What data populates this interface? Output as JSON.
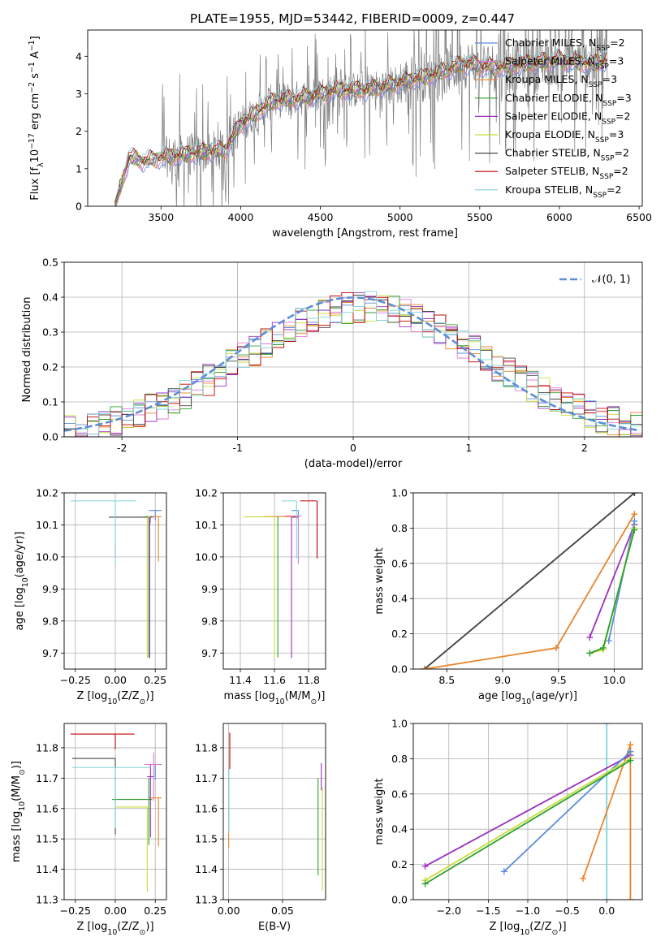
{
  "figure_title": "PLATE=1955, MJD=53442, FIBERID=0009, z=0.447",
  "model_colors": {
    "Chabrier MILES": "#5b8ed6",
    "Salpeter MILES": "#e07ad8",
    "Kroupa MILES": "#e8842a",
    "Chabrier ELODIE": "#2ca02c",
    "Salpeter ELODIE": "#9b30c0",
    "Kroupa ELODIE": "#c8dc3c",
    "Chabrier STELIB": "#444444",
    "Salpeter STELIB": "#c00000",
    "Kroupa STELIB": "#7fd3dc",
    "data": "#7f7f7f"
  },
  "chart_data": [
    {
      "id": "spectrum",
      "type": "line",
      "title": "",
      "xlabel": "wavelength [Angstrom, rest frame]",
      "ylabel_main": "Flux [f",
      "ylabel_sub": "λ",
      "ylabel_mid": "10",
      "ylabel_sup1": "−17",
      "ylabel_rest": " erg cm",
      "ylabel_sup2": "−2",
      "ylabel_rest2": " s",
      "ylabel_sup3": "−1",
      "ylabel_rest3": " A",
      "ylabel_sup4": "−1",
      "ylabel_end": "]",
      "xlim": [
        3040,
        6520
      ],
      "ylim": [
        0,
        4.7
      ],
      "xticks": [
        3500,
        4000,
        4500,
        5000,
        5500,
        6000,
        6500
      ],
      "yticks": [
        0,
        1,
        2,
        3,
        4
      ],
      "grid": false,
      "legend_position": "top-right",
      "legend": [
        {
          "name": "Chabrier MILES",
          "nssp": "2"
        },
        {
          "name": "Salpeter MILES",
          "nssp": "3"
        },
        {
          "name": "Kroupa MILES",
          "nssp": "3"
        },
        {
          "name": "Chabrier ELODIE",
          "nssp": "3"
        },
        {
          "name": "Salpeter ELODIE",
          "nssp": "2"
        },
        {
          "name": "Kroupa ELODIE",
          "nssp": "3"
        },
        {
          "name": "Chabrier STELIB",
          "nssp": "2"
        },
        {
          "name": "Salpeter STELIB",
          "nssp": "2"
        },
        {
          "name": "Kroupa STELIB",
          "nssp": "2"
        }
      ],
      "legend_nssp_label": "N",
      "legend_nssp_sub": "SSP",
      "data_start": 3210,
      "model_anchor_wavelengths": [
        3210,
        3300,
        3400,
        3500,
        3700,
        3900,
        4000,
        4200,
        4400,
        4600,
        4800,
        5000,
        5200,
        5400,
        5600,
        5800,
        6000,
        6200,
        6300
      ],
      "model_anchor_flux": [
        0.0,
        1.3,
        1.2,
        1.3,
        1.4,
        1.5,
        2.2,
        2.8,
        2.9,
        3.1,
        3.1,
        3.3,
        3.5,
        3.8,
        3.7,
        3.8,
        3.9,
        3.8,
        3.9
      ]
    },
    {
      "id": "residuals",
      "type": "line",
      "xlabel": "(data-model)/error",
      "ylabel": "Normed distribution",
      "xlim": [
        -2.5,
        2.5
      ],
      "ylim": [
        0,
        0.5
      ],
      "xticks": [
        -2,
        -1,
        0,
        1,
        2
      ],
      "yticks": [
        0.0,
        0.1,
        0.2,
        0.3,
        0.4,
        0.5
      ],
      "grid": true,
      "legend_position": "top-right",
      "legend": [
        "𝒩(0, 1)"
      ],
      "normal_curve": {
        "mean": 0,
        "sigma": 1,
        "color": "#5b8ed6"
      }
    },
    {
      "id": "age-vs-Z",
      "type": "scatter",
      "xlabel": "Z [log",
      "xlabel_sub": "10",
      "xlabel_tail": "(Z/Z",
      "xlabel_sub2": "⊙",
      "xlabel_end": ")]",
      "ylabel": "age  [log",
      "ylabel_sub": "10",
      "ylabel_tail": "(age/yr)]",
      "xlim": [
        -0.32,
        0.32
      ],
      "ylim": [
        9.65,
        10.2
      ],
      "xticks": [
        -0.25,
        0.0,
        0.25
      ],
      "xtick_labels": [
        "−0.25",
        "0.00",
        "0.25"
      ],
      "yticks": [
        9.7,
        9.8,
        9.9,
        10.0,
        10.1,
        10.2
      ],
      "grid": true,
      "points": [
        {
          "model": "Chabrier MILES",
          "x": 0.25,
          "y": 10.145,
          "xerr": [
            0.04,
            0.04
          ],
          "yerr": [
            0.03,
            0.0
          ]
        },
        {
          "model": "Salpeter MILES",
          "x": 0.22,
          "y": 10.125,
          "xerr": [
            0.04,
            0.03
          ],
          "yerr": [
            0.02,
            0.0
          ]
        },
        {
          "model": "Kroupa MILES",
          "x": 0.27,
          "y": 10.126,
          "xerr": [
            0.05,
            0.02
          ],
          "yerr": [
            0.14,
            0.0
          ]
        },
        {
          "model": "Chabrier ELODIE",
          "x": 0.21,
          "y": 10.126,
          "xerr": [
            0.02,
            0.02
          ],
          "yerr": [
            0.44,
            0.0
          ]
        },
        {
          "model": "Salpeter ELODIE",
          "x": 0.215,
          "y": 10.124,
          "xerr": [
            0.02,
            0.02
          ],
          "yerr": [
            0.44,
            0.0
          ]
        },
        {
          "model": "Kroupa ELODIE",
          "x": 0.2,
          "y": 10.125,
          "xerr": [
            0.02,
            0.02
          ],
          "yerr": [
            0.44,
            0.0
          ]
        },
        {
          "model": "Chabrier STELIB",
          "x": 0.0,
          "y": 10.124,
          "xerr": [
            0.04,
            0.2
          ],
          "yerr": [
            0.0,
            0.0
          ]
        },
        {
          "model": "Salpeter STELIB",
          "x": 0.0,
          "y": 10.02,
          "xerr": [
            0.0,
            0.0
          ],
          "yerr": [
            0.02,
            0.02
          ]
        },
        {
          "model": "Kroupa STELIB",
          "x": 0.0,
          "y": 10.175,
          "xerr": [
            0.28,
            0.13
          ],
          "yerr": [
            0.2,
            0.0
          ]
        }
      ]
    },
    {
      "id": "age-vs-mass",
      "type": "scatter",
      "xlabel": "mass [log",
      "xlabel_sub": "10",
      "xlabel_tail": "(M/M",
      "xlabel_sub2": "⊙",
      "xlabel_end": ")]",
      "xlim": [
        11.3,
        11.9
      ],
      "ylim": [
        9.65,
        10.2
      ],
      "xticks": [
        11.4,
        11.6,
        11.8
      ],
      "yticks": [
        9.7,
        9.8,
        9.9,
        10.0,
        10.1,
        10.2
      ],
      "grid": true,
      "points": [
        {
          "model": "Chabrier MILES",
          "x": 11.74,
          "y": 10.145,
          "xerr": [
            0.04,
            0.0
          ],
          "yerr": [
            0.03,
            0.0
          ]
        },
        {
          "model": "Salpeter MILES",
          "x": 11.74,
          "y": 10.128,
          "xerr": [
            0.08,
            0.02
          ],
          "yerr": [
            0.15,
            0.0
          ]
        },
        {
          "model": "Kroupa MILES",
          "x": 11.64,
          "y": 10.126,
          "xerr": [
            0.1,
            0.1
          ],
          "yerr": [
            0.0,
            0.0
          ]
        },
        {
          "model": "Chabrier ELODIE",
          "x": 11.62,
          "y": 10.126,
          "xerr": [
            0.0,
            0.0
          ],
          "yerr": [
            0.44,
            0.0
          ]
        },
        {
          "model": "Salpeter ELODIE",
          "x": 11.7,
          "y": 10.124,
          "xerr": [
            0.0,
            0.04
          ],
          "yerr": [
            0.44,
            0.0
          ]
        },
        {
          "model": "Kroupa ELODIE",
          "x": 11.6,
          "y": 10.125,
          "xerr": [
            0.18,
            0.0
          ],
          "yerr": [
            0.44,
            0.0
          ]
        },
        {
          "model": "Chabrier STELIB",
          "x": 11.76,
          "y": 10.126,
          "xerr": [
            0.0,
            0.0
          ],
          "yerr": [
            0.0,
            0.0
          ]
        },
        {
          "model": "Salpeter STELIB",
          "x": 11.85,
          "y": 10.175,
          "xerr": [
            0.1,
            0.0
          ],
          "yerr": [
            0.18,
            0.0
          ]
        },
        {
          "model": "Kroupa STELIB",
          "x": 11.73,
          "y": 10.175,
          "xerr": [
            0.09,
            0.0
          ],
          "yerr": [
            0.18,
            0.0
          ]
        }
      ]
    },
    {
      "id": "massweight-vs-age",
      "type": "line",
      "xlabel": "age  [log",
      "xlabel_sub": "10",
      "xlabel_tail": "(age/yr)]",
      "ylabel": "mass weight",
      "xlim": [
        8.2,
        10.25
      ],
      "ylim": [
        0,
        1.0
      ],
      "xticks": [
        8.5,
        9.0,
        9.5,
        10.0
      ],
      "yticks": [
        0.0,
        0.2,
        0.4,
        0.6,
        0.8,
        1.0
      ],
      "grid": true,
      "series": [
        {
          "model": "Kroupa STELIB",
          "x": [
            8.3,
            10.18
          ],
          "y": [
            0.0,
            1.0
          ]
        },
        {
          "model": "Chabrier STELIB",
          "x": [
            8.3,
            10.18
          ],
          "y": [
            0.0,
            1.0
          ]
        },
        {
          "model": "Kroupa MILES",
          "x": [
            8.3,
            9.48,
            10.18
          ],
          "y": [
            0.0,
            0.12,
            0.88
          ]
        },
        {
          "model": "Salpeter ELODIE",
          "x": [
            9.78,
            10.18
          ],
          "y": [
            0.18,
            0.82
          ]
        },
        {
          "model": "Chabrier MILES",
          "x": [
            9.95,
            10.18
          ],
          "y": [
            0.16,
            0.84
          ]
        },
        {
          "model": "Kroupa ELODIE",
          "x": [
            9.78,
            9.9,
            10.18
          ],
          "y": [
            0.09,
            0.11,
            0.8
          ]
        },
        {
          "model": "Chabrier ELODIE",
          "x": [
            9.78,
            9.9,
            10.18
          ],
          "y": [
            0.09,
            0.12,
            0.79
          ]
        }
      ]
    },
    {
      "id": "mass-vs-Z",
      "type": "scatter",
      "xlabel": "Z [log",
      "xlabel_sub": "10",
      "xlabel_tail": "(Z/Z",
      "xlabel_sub2": "⊙",
      "xlabel_end": ")]",
      "ylabel": "mass [log",
      "ylabel_sub": "10",
      "ylabel_tail": "(M/M",
      "ylabel_sub2": "⊙",
      "ylabel_end": ")]",
      "xlim": [
        -0.32,
        0.32
      ],
      "ylim": [
        11.3,
        11.88
      ],
      "xticks": [
        -0.25,
        0.0,
        0.25
      ],
      "xtick_labels": [
        "−0.25",
        "0.00",
        "0.25"
      ],
      "yticks": [
        11.3,
        11.4,
        11.5,
        11.6,
        11.7,
        11.8
      ],
      "grid": true,
      "points": [
        {
          "model": "Chabrier MILES",
          "x": 0.25,
          "y": 11.745,
          "xerr": [
            0.03,
            0.04
          ],
          "yerr": [
            0.05,
            0.0
          ]
        },
        {
          "model": "Salpeter MILES",
          "x": 0.24,
          "y": 11.745,
          "xerr": [
            0.06,
            0.04
          ],
          "yerr": [
            0.12,
            0.04
          ]
        },
        {
          "model": "Kroupa MILES",
          "x": 0.27,
          "y": 11.635,
          "xerr": [
            0.06,
            0.02
          ],
          "yerr": [
            0.16,
            0.0
          ]
        },
        {
          "model": "Chabrier ELODIE",
          "x": 0.21,
          "y": 11.63,
          "xerr": [
            0.23,
            0.02
          ],
          "yerr": [
            0.15,
            0.07
          ]
        },
        {
          "model": "Salpeter ELODIE",
          "x": 0.22,
          "y": 11.705,
          "xerr": [
            0.02,
            0.02
          ],
          "yerr": [
            0.2,
            0.04
          ]
        },
        {
          "model": "Kroupa ELODIE",
          "x": 0.2,
          "y": 11.605,
          "xerr": [
            0.2,
            0.02
          ],
          "yerr": [
            0.28,
            0.0
          ]
        },
        {
          "model": "Chabrier STELIB",
          "x": 0.0,
          "y": 11.765,
          "xerr": [
            0.27,
            0.0
          ],
          "yerr": [
            0.25,
            0.0
          ]
        },
        {
          "model": "Salpeter STELIB",
          "x": 0.0,
          "y": 11.845,
          "xerr": [
            0.28,
            0.12
          ],
          "yerr": [
            0.05,
            0.0
          ]
        },
        {
          "model": "Kroupa STELIB",
          "x": 0.0,
          "y": 11.735,
          "xerr": [
            0.27,
            0.22
          ],
          "yerr": [
            0.2,
            0.0
          ]
        }
      ]
    },
    {
      "id": "mass-vs-ebv",
      "type": "scatter",
      "xlabel": "E(B-V)",
      "xlim": [
        -0.005,
        0.09
      ],
      "ylim": [
        11.3,
        11.88
      ],
      "xticks": [
        0.0,
        0.05
      ],
      "xtick_labels": [
        "0.00",
        "0.05"
      ],
      "yticks": [
        11.3,
        11.4,
        11.5,
        11.6,
        11.7,
        11.8
      ],
      "grid": true,
      "points": [
        {
          "model": "Chabrier MILES",
          "x": 0.0,
          "y": 11.63,
          "yerr": [
            0.1,
            0.1
          ]
        },
        {
          "model": "Kroupa MILES",
          "x": 0.0,
          "y": 11.6,
          "yerr": [
            0.13,
            0.1
          ]
        },
        {
          "model": "Salpeter STELIB",
          "x": 0.001,
          "y": 11.78,
          "yerr": [
            0.05,
            0.07
          ]
        },
        {
          "model": "Kroupa STELIB",
          "x": 0.0,
          "y": 11.62,
          "yerr": [
            0.1,
            0.11
          ]
        },
        {
          "model": "Chabrier ELODIE",
          "x": 0.083,
          "y": 11.55,
          "yerr": [
            0.17,
            0.15
          ]
        },
        {
          "model": "Salpeter ELODIE",
          "x": 0.086,
          "y": 11.71,
          "yerr": [
            0.05,
            0.04
          ]
        },
        {
          "model": "Kroupa ELODIE",
          "x": 0.087,
          "y": 11.5,
          "yerr": [
            0.17,
            0.17
          ]
        }
      ]
    },
    {
      "id": "massweight-vs-Z",
      "type": "line",
      "xlabel": "Z [log",
      "xlabel_sub": "10",
      "xlabel_tail": "(Z/Z",
      "xlabel_sub2": "⊙",
      "xlabel_end": ")]",
      "ylabel": "mass weight",
      "xlim": [
        -2.45,
        0.45
      ],
      "ylim": [
        0,
        1.0
      ],
      "xticks": [
        -2.0,
        -1.5,
        -1.0,
        -0.5,
        0.0
      ],
      "xtick_labels": [
        "−2.0",
        "−1.5",
        "−1.0",
        "−0.5",
        "0.0"
      ],
      "yticks": [
        0.0,
        0.2,
        0.4,
        0.6,
        0.8,
        1.0
      ],
      "grid": true,
      "series": [
        {
          "model": "Kroupa STELIB",
          "x": [
            0.0,
            0.0
          ],
          "y": [
            0.0,
            1.0
          ]
        },
        {
          "model": "Kroupa MILES",
          "x": [
            0.3,
            0.3,
            -0.3
          ],
          "y": [
            0.0,
            0.88,
            0.12
          ]
        },
        {
          "model": "Salpeter ELODIE",
          "x": [
            -2.3,
            0.3
          ],
          "y": [
            0.19,
            0.82
          ]
        },
        {
          "model": "Chabrier MILES",
          "x": [
            -1.3,
            0.3
          ],
          "y": [
            0.16,
            0.84
          ]
        },
        {
          "model": "Kroupa ELODIE",
          "x": [
            -2.3,
            0.3
          ],
          "y": [
            0.11,
            0.8
          ]
        },
        {
          "model": "Chabrier ELODIE",
          "x": [
            -2.3,
            0.3
          ],
          "y": [
            0.09,
            0.79
          ]
        }
      ]
    }
  ]
}
